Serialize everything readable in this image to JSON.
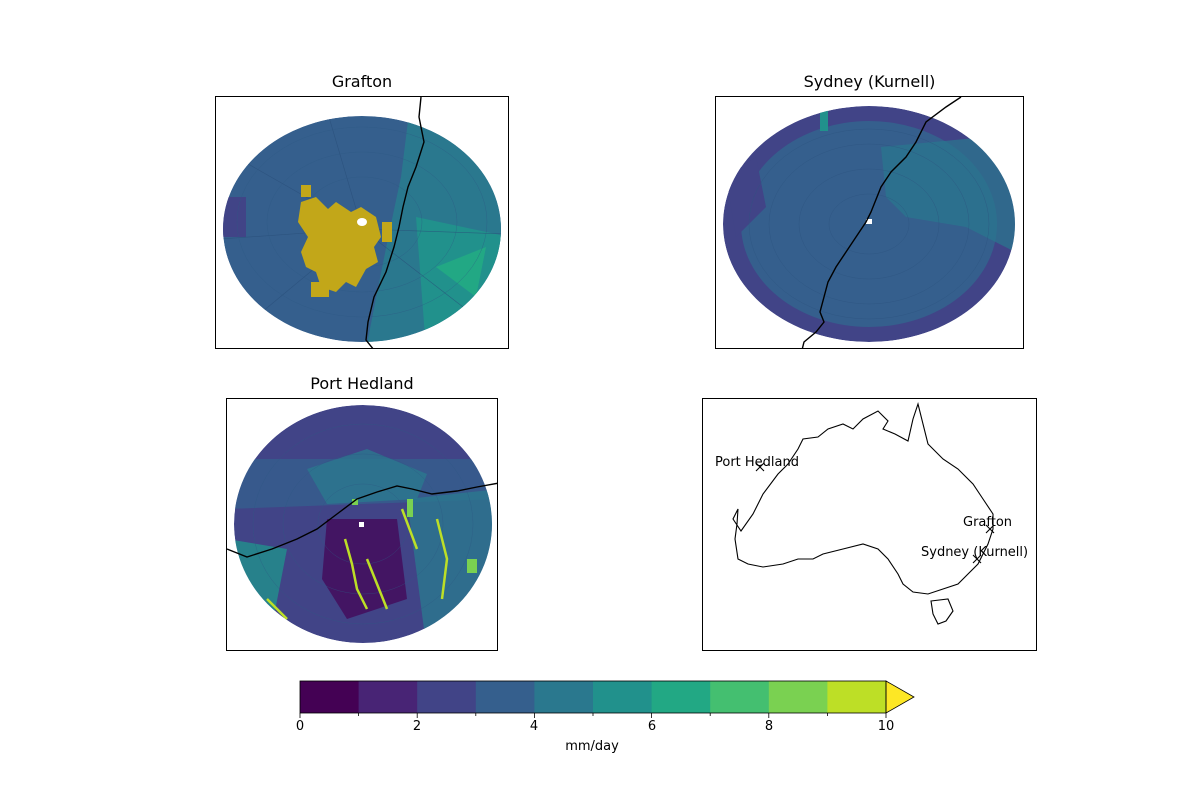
{
  "panels": {
    "grafton": {
      "title": "Grafton"
    },
    "sydney": {
      "title": "Sydney (Kurnell)"
    },
    "port_hedland": {
      "title": "Port Hedland"
    }
  },
  "overview_map": {
    "markers": [
      {
        "name": "Port Hedland"
      },
      {
        "name": "Grafton"
      },
      {
        "name": "Sydney (Kurnell)"
      }
    ]
  },
  "colorbar": {
    "label": "mm/day",
    "ticks": [
      "0",
      "2",
      "4",
      "6",
      "8",
      "10"
    ],
    "levels": [
      0,
      1,
      2,
      3,
      4,
      5,
      6,
      7,
      8,
      9,
      10
    ],
    "extend": "max",
    "colors": [
      "#440154",
      "#482475",
      "#414487",
      "#355f8d",
      "#2a788e",
      "#21918c",
      "#22a884",
      "#44bf70",
      "#7ad151",
      "#bddf26",
      "#fde725"
    ]
  }
}
